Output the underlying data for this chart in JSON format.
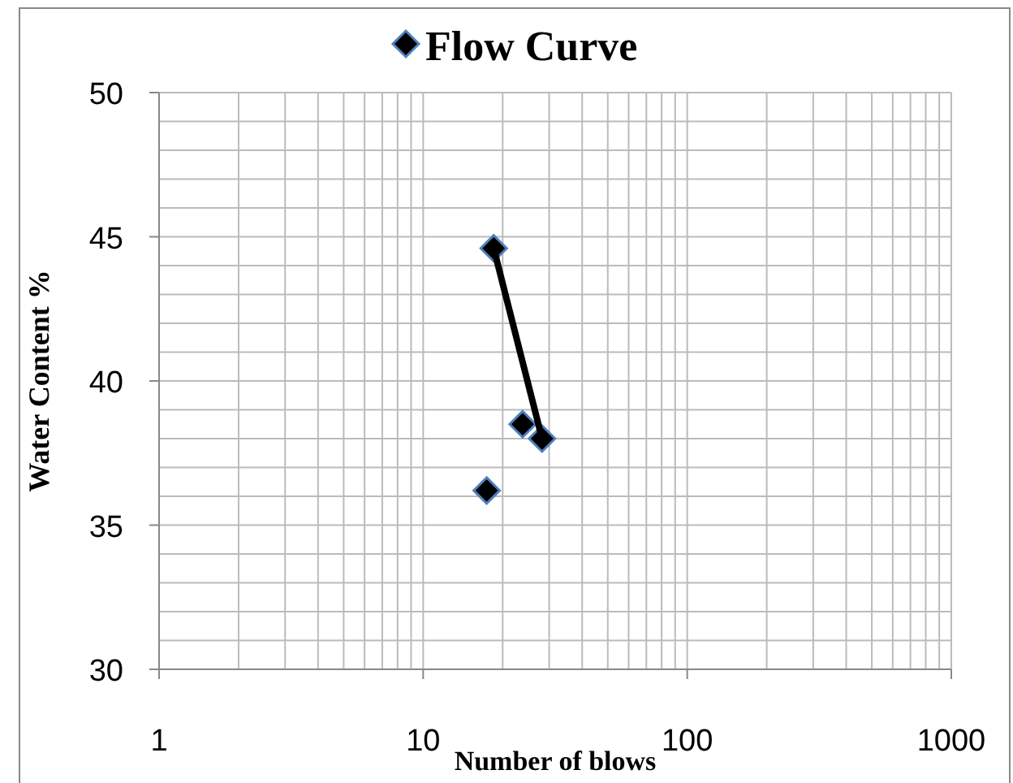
{
  "chart_data": {
    "type": "scatter",
    "xlabel": "Number of blows",
    "ylabel": "Water Content %",
    "log": "x",
    "series": [
      {
        "name": "Flow Curve",
        "color": "#000000",
        "x": [
          17.4,
          18.5,
          23.8,
          28.2
        ],
        "values": [
          36.2,
          44.6,
          38.5,
          38.0
        ]
      },
      {
        "type": "line",
        "color": "#000000",
        "x": [
          18.5,
          28.2
        ],
        "values": [
          44.6,
          38.0
        ],
        "marker": "none"
      }
    ],
    "marker": "diamond",
    "xlim": [
      1,
      1000
    ],
    "xticks": [
      1,
      10,
      100,
      1000
    ],
    "ylim": [
      30,
      50
    ],
    "yticks": [
      30,
      35,
      40,
      45,
      50
    ],
    "grid": true,
    "legend": "top"
  }
}
